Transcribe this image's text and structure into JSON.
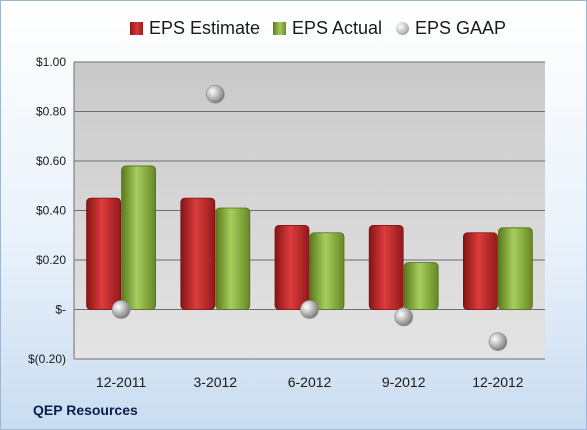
{
  "company": "QEP Resources",
  "chart_data": {
    "type": "bar",
    "categories": [
      "12-2011",
      "3-2012",
      "6-2012",
      "9-2012",
      "12-2012"
    ],
    "series": [
      {
        "name": "EPS Estimate",
        "kind": "bar",
        "color": "#c62b2b",
        "values": [
          0.45,
          0.45,
          0.34,
          0.34,
          0.31
        ]
      },
      {
        "name": "EPS Actual",
        "kind": "bar",
        "color": "#8db33f",
        "values": [
          0.58,
          0.41,
          0.31,
          0.19,
          0.33
        ]
      },
      {
        "name": "EPS GAAP",
        "kind": "marker",
        "color": "#a6a6a6",
        "values": [
          0.0,
          0.87,
          0.0,
          -0.03,
          -0.13
        ]
      }
    ],
    "yticks": [
      {
        "value": 1.0,
        "label": "$1.00"
      },
      {
        "value": 0.8,
        "label": "$0.80"
      },
      {
        "value": 0.6,
        "label": "$0.60"
      },
      {
        "value": 0.4,
        "label": "$0.40"
      },
      {
        "value": 0.2,
        "label": "$0.20"
      },
      {
        "value": 0.0,
        "label": "$-"
      },
      {
        "value": -0.2,
        "label": "$(0.20)"
      }
    ],
    "ylim": [
      -0.2,
      1.0
    ],
    "grid": true,
    "legend": "top"
  }
}
